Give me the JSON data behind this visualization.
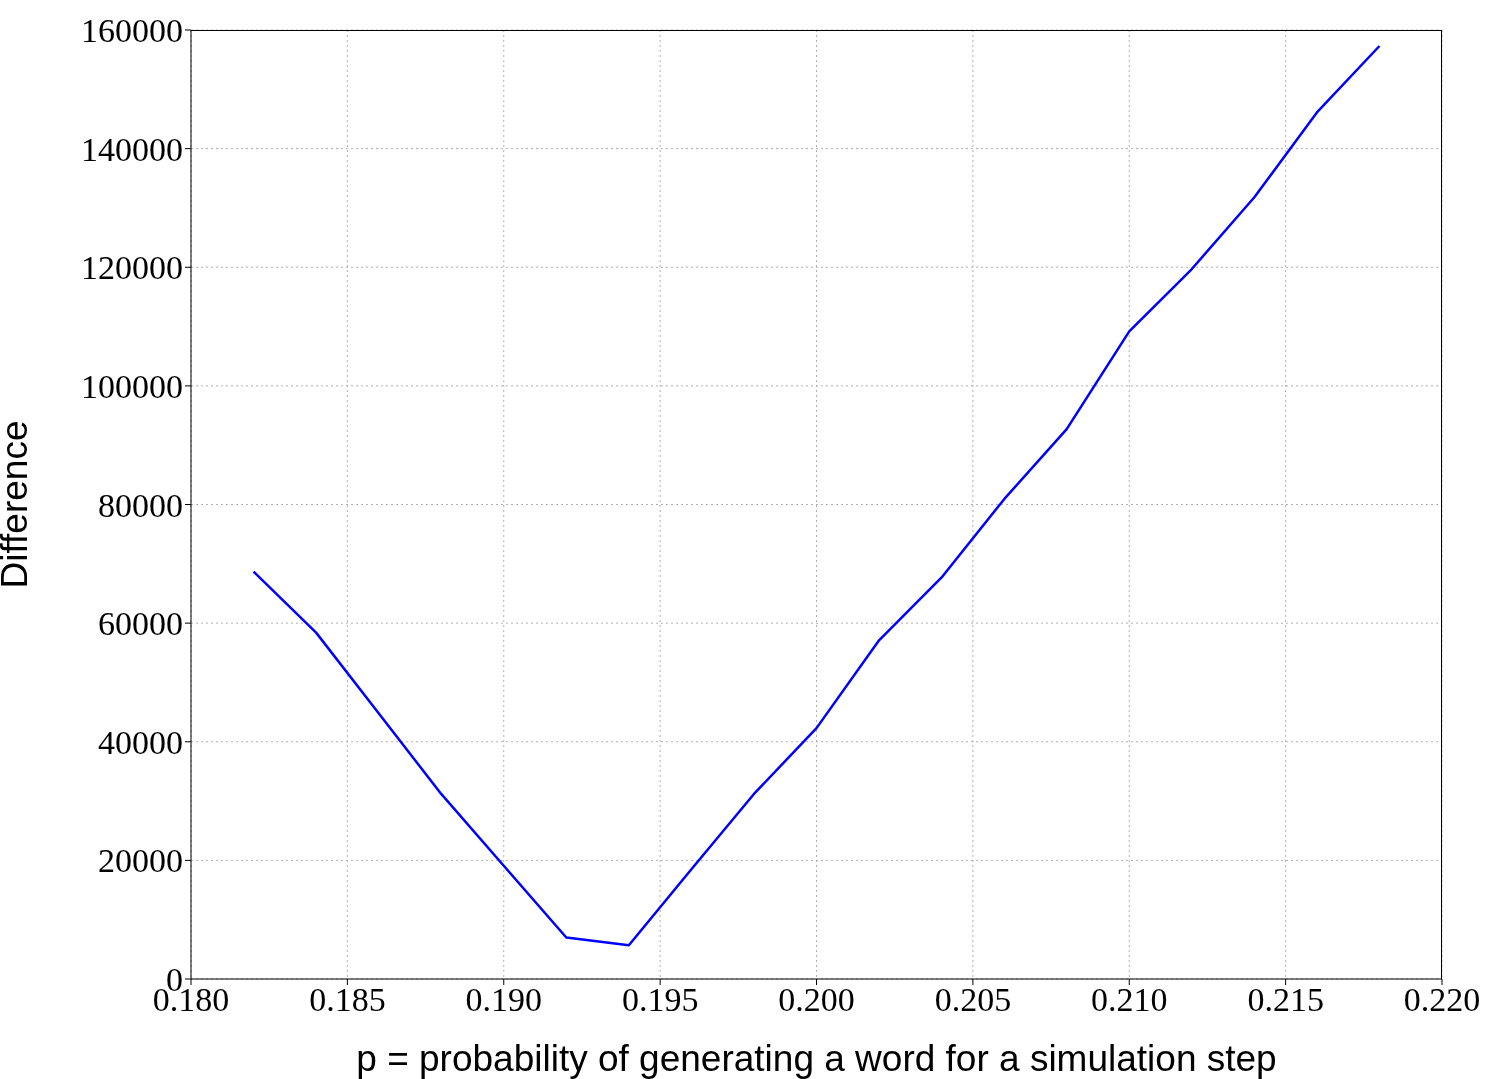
{
  "chart_data": {
    "type": "line",
    "xlabel": "p = probability of generating a word for a simulation step",
    "ylabel": "Difference",
    "x": [
      0.182,
      0.184,
      0.186,
      0.188,
      0.19,
      0.192,
      0.194,
      0.196,
      0.198,
      0.2,
      0.202,
      0.204,
      0.206,
      0.208,
      0.21,
      0.212,
      0.214,
      0.216,
      0.218
    ],
    "series": [
      {
        "color": "#0000ff",
        "values": [
          68700,
          58400,
          44800,
          31200,
          19100,
          7000,
          5700,
          18500,
          31200,
          42300,
          57100,
          67700,
          80900,
          92700,
          109200,
          119700,
          131800,
          146100,
          157300
        ]
      }
    ],
    "xlim": [
      0.18,
      0.22
    ],
    "xticks": [
      {
        "value": 0.18,
        "label": "0.180"
      },
      {
        "value": 0.185,
        "label": "0.185"
      },
      {
        "value": 0.19,
        "label": "0.190"
      },
      {
        "value": 0.195,
        "label": "0.195"
      },
      {
        "value": 0.2,
        "label": "0.200"
      },
      {
        "value": 0.205,
        "label": "0.205"
      },
      {
        "value": 0.21,
        "label": "0.210"
      },
      {
        "value": 0.215,
        "label": "0.215"
      },
      {
        "value": 0.22,
        "label": "0.220"
      }
    ],
    "ylim": [
      0,
      160000
    ],
    "yticks": [
      0,
      20000,
      40000,
      60000,
      80000,
      100000,
      120000,
      140000,
      160000
    ],
    "grid": true,
    "marker": "none",
    "line_style": "solid"
  }
}
